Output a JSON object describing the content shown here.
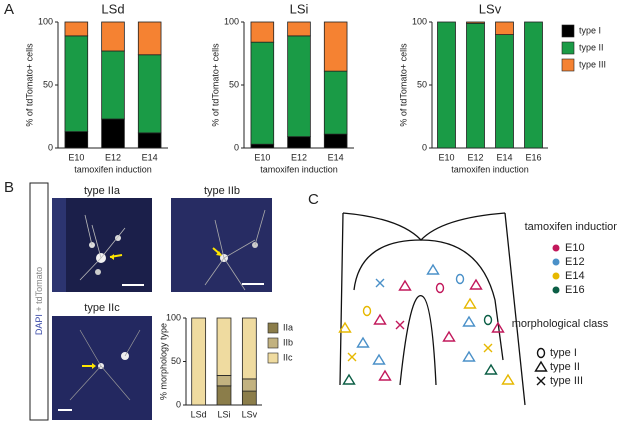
{
  "panels": {
    "a": "A",
    "b": "B",
    "c": "C"
  },
  "chart_data": [
    {
      "type": "bar",
      "stacked": true,
      "title": "LSd",
      "y_label": "% of tdTomato+ cells",
      "x_label": "tamoxifen induction",
      "categories": [
        "E10",
        "E12",
        "E14"
      ],
      "ylim": [
        0,
        100
      ],
      "yticks": [
        0,
        50,
        100
      ],
      "series": [
        {
          "name": "type I",
          "color": "#000000",
          "values": [
            13,
            23,
            12
          ]
        },
        {
          "name": "type II",
          "color": "#1a9b46",
          "values": [
            76,
            54,
            62
          ]
        },
        {
          "name": "type III",
          "color": "#f58232",
          "values": [
            11,
            23,
            26
          ]
        }
      ]
    },
    {
      "type": "bar",
      "stacked": true,
      "title": "LSi",
      "y_label": "% of tdTomato+ cells",
      "x_label": "tamoxifen induction",
      "categories": [
        "E10",
        "E12",
        "E14"
      ],
      "ylim": [
        0,
        100
      ],
      "yticks": [
        0,
        50,
        100
      ],
      "series": [
        {
          "name": "type I",
          "color": "#000000",
          "values": [
            3,
            9,
            11
          ]
        },
        {
          "name": "type II",
          "color": "#1a9b46",
          "values": [
            81,
            80,
            50
          ]
        },
        {
          "name": "type III",
          "color": "#f58232",
          "values": [
            16,
            11,
            39
          ]
        }
      ]
    },
    {
      "type": "bar",
      "stacked": true,
      "title": "LSv",
      "y_label": "% of tdTomato+ cells",
      "x_label": "tamoxifen induction",
      "categories": [
        "E10",
        "E12",
        "E14",
        "E16"
      ],
      "ylim": [
        0,
        100
      ],
      "yticks": [
        0,
        50,
        100
      ],
      "legend": "right",
      "series": [
        {
          "name": "type I",
          "color": "#000000",
          "values": [
            0,
            0,
            0,
            0
          ]
        },
        {
          "name": "type II",
          "color": "#1a9b46",
          "values": [
            100,
            99,
            90,
            100
          ]
        },
        {
          "name": "type III",
          "color": "#f58232",
          "values": [
            0,
            1,
            10,
            0
          ]
        }
      ]
    },
    {
      "type": "bar",
      "stacked": true,
      "y_label": "% morphology type",
      "categories": [
        "LSd",
        "LSi",
        "LSv"
      ],
      "ylim": [
        0,
        100
      ],
      "yticks": [
        0,
        50,
        100
      ],
      "legend": "right",
      "series": [
        {
          "name": "IIa",
          "color": "#8b7d4a",
          "values": [
            0,
            22,
            16
          ]
        },
        {
          "name": "IIb",
          "color": "#c2b280",
          "values": [
            0,
            12,
            14
          ]
        },
        {
          "name": "IIc",
          "color": "#efdba0",
          "values": [
            100,
            66,
            70
          ]
        }
      ]
    }
  ],
  "images": {
    "stain_a": "DAPI",
    "stain_b": "+ tdTomato",
    "labels": [
      "type IIa",
      "type IIb",
      "type IIc"
    ]
  },
  "diagram": {
    "induction_title": "tamoxifen induction",
    "induction": [
      {
        "name": "E10",
        "color": "#c2185b"
      },
      {
        "name": "E12",
        "color": "#4a90c8"
      },
      {
        "name": "E14",
        "color": "#e6b800"
      },
      {
        "name": "E16",
        "color": "#0b5e45"
      }
    ],
    "class_title": "morphological class",
    "classes": [
      "type I",
      "type II",
      "type III"
    ]
  }
}
